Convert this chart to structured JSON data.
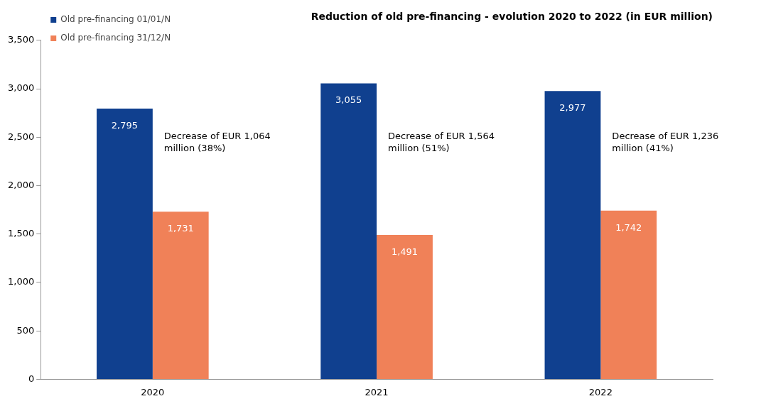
{
  "chart_data": {
    "type": "bar",
    "title": "Reduction of old pre-financing - evolution 2020 to 2022 (in EUR million)",
    "categories": [
      "2020",
      "2021",
      "2022"
    ],
    "series": [
      {
        "name": "Old pre-financing 01/01/N",
        "color": "#10408f",
        "values": [
          2795,
          3055,
          2977
        ],
        "value_labels": [
          "2,795",
          "3,055",
          "2,977"
        ]
      },
      {
        "name": "Old pre-financing 31/12/N",
        "color": "#f08158",
        "values": [
          1731,
          1491,
          1742
        ],
        "value_labels": [
          "1,731",
          "1,491",
          "1,742"
        ]
      }
    ],
    "ylim": [
      0,
      3500
    ],
    "yticks": [
      {
        "value": 0,
        "label": "0"
      },
      {
        "value": 500,
        "label": "500"
      },
      {
        "value": 1000,
        "label": "1,000"
      },
      {
        "value": 1500,
        "label": "1,500"
      },
      {
        "value": 2000,
        "label": "2,000"
      },
      {
        "value": 2500,
        "label": "2,500"
      },
      {
        "value": 3000,
        "label": "3,000"
      },
      {
        "value": 3500,
        "label": "3,500"
      }
    ],
    "grid": false,
    "legend": "top left",
    "annotations": [
      {
        "text": "Decrease of EUR 1,064 million (38%)",
        "x": "2020",
        "y": 2550
      },
      {
        "text": "Decrease of EUR 1,564 million (51%)",
        "x": "2021",
        "y": 2550
      },
      {
        "text": "Decrease of EUR 1,236 million (41%)",
        "x": "2022",
        "y": 2550
      }
    ]
  }
}
